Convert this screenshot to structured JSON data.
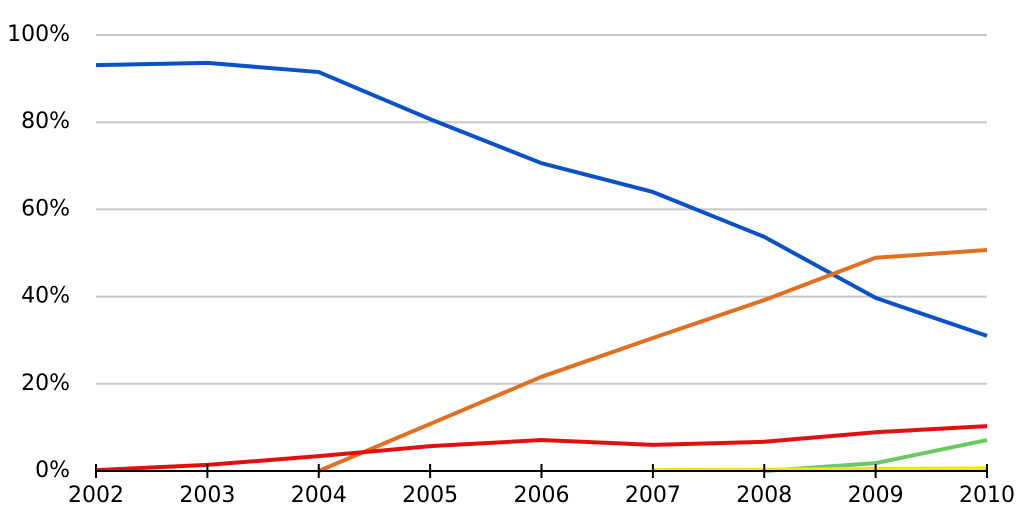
{
  "chart_data": {
    "type": "line",
    "x": [
      2002,
      2003,
      2004,
      2005,
      2006,
      2007,
      2008,
      2009,
      2010
    ],
    "xlim": [
      2002,
      2010
    ],
    "xticks": [
      2002,
      2003,
      2004,
      2005,
      2006,
      2007,
      2008,
      2009,
      2010
    ],
    "ylim": [
      0,
      100
    ],
    "yticks": [
      {
        "value": 0,
        "label": "0%"
      },
      {
        "value": 20,
        "label": "20%"
      },
      {
        "value": 40,
        "label": "40%"
      },
      {
        "value": 60,
        "label": "60%"
      },
      {
        "value": 80,
        "label": "80%"
      },
      {
        "value": 100,
        "label": "100%"
      }
    ],
    "grid": true,
    "series": [
      {
        "color": "#0a52c6",
        "values": [
          93.1,
          93.6,
          91.5,
          80.7,
          70.6,
          64.0,
          53.7,
          39.7,
          31.0
        ]
      },
      {
        "color": "#e07020",
        "values": [
          null,
          null,
          0,
          10.8,
          21.6,
          30.5,
          39.2,
          48.9,
          50.7
        ]
      },
      {
        "color": "#e41010",
        "values": [
          0.2,
          1.4,
          3.4,
          5.7,
          7.1,
          6.0,
          6.7,
          8.9,
          10.3
        ]
      },
      {
        "color": "#6cc860",
        "values": [
          null,
          null,
          null,
          null,
          null,
          null,
          0,
          1.8,
          7.1
        ]
      },
      {
        "color": "#f0e800",
        "values": [
          null,
          null,
          null,
          null,
          null,
          0.2,
          0.3,
          0.5,
          0.6
        ]
      }
    ]
  }
}
